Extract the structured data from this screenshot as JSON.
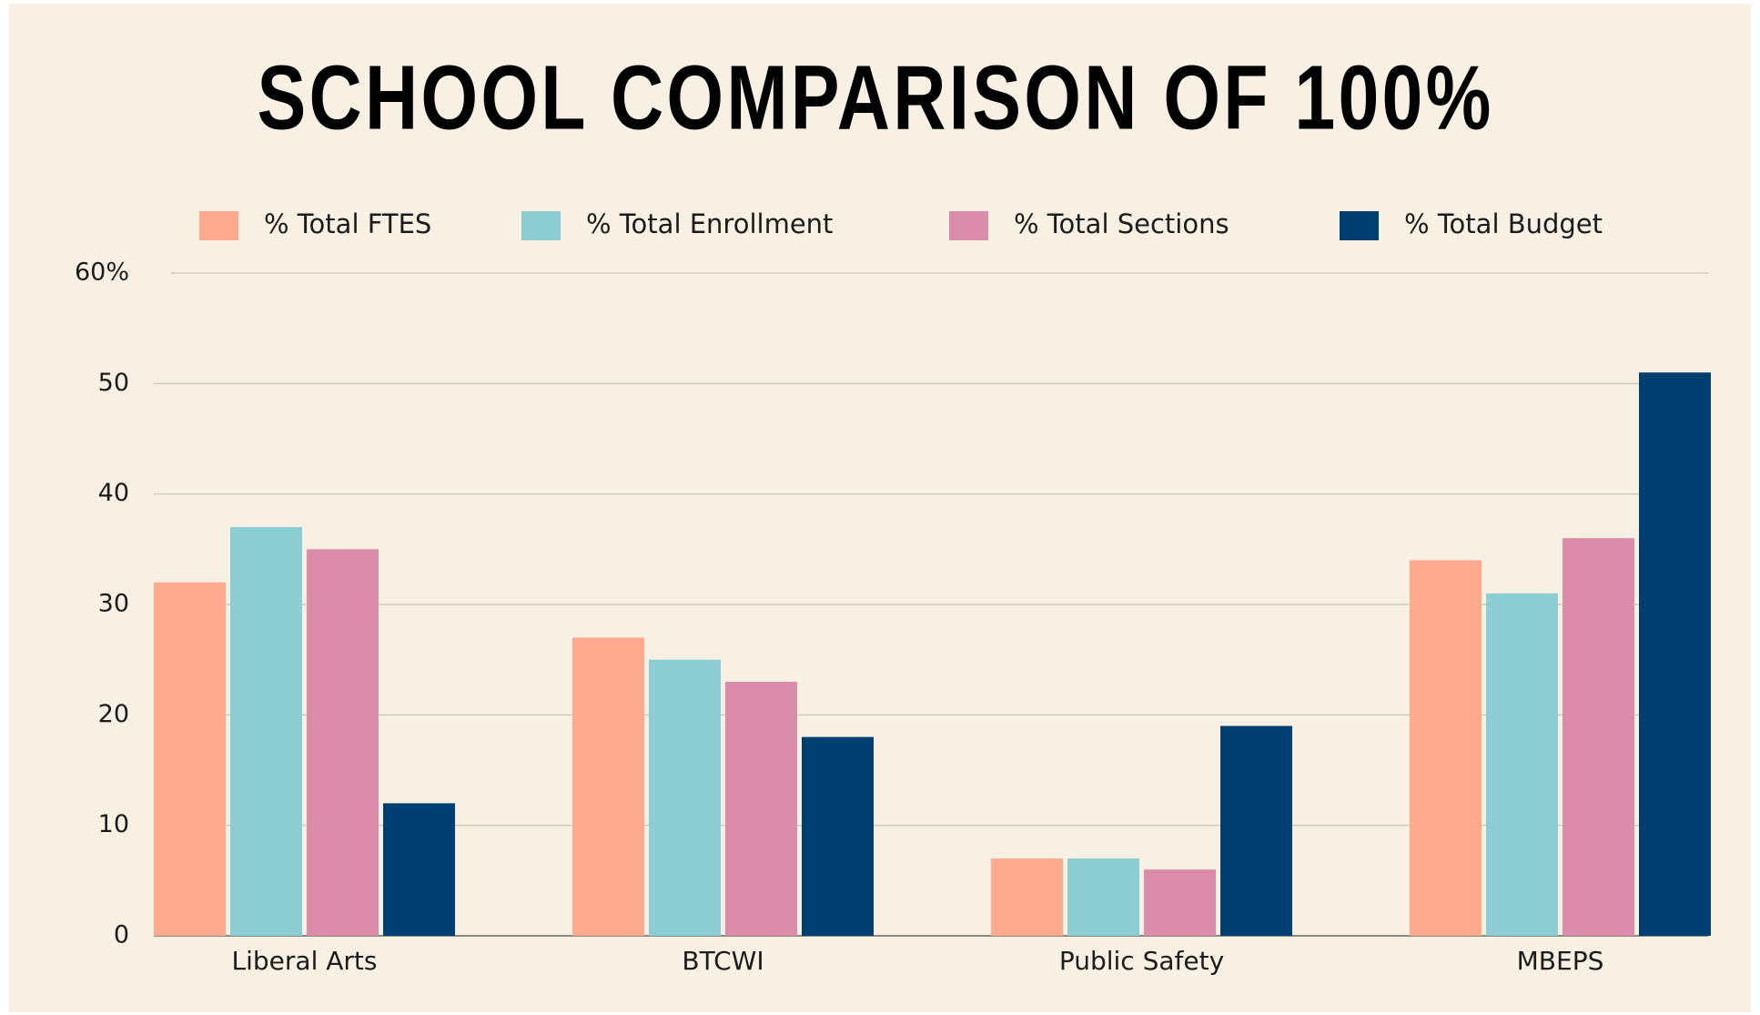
{
  "chart_data": {
    "type": "bar",
    "title": "SCHOOL COMPARISON OF 100%",
    "categories": [
      "Liberal Arts",
      "BTCWI",
      "Public Safety",
      "MBEPS"
    ],
    "series": [
      {
        "name": "% Total FTES",
        "color": "#ffa98e",
        "values": [
          32,
          27,
          7,
          34
        ]
      },
      {
        "name": "% Total Enrollment",
        "color": "#8ccdd3",
        "values": [
          37,
          25,
          7,
          31
        ]
      },
      {
        "name": "% Total Sections",
        "color": "#dc8cab",
        "values": [
          35,
          23,
          6,
          36
        ]
      },
      {
        "name": "% Total Budget",
        "color": "#003f71",
        "values": [
          12,
          18,
          19,
          51
        ]
      }
    ],
    "ylim": [
      0,
      60
    ],
    "yticks": [
      0,
      10,
      20,
      30,
      40,
      50,
      {
        "value": 60,
        "label": "60%"
      }
    ],
    "grid": true
  }
}
